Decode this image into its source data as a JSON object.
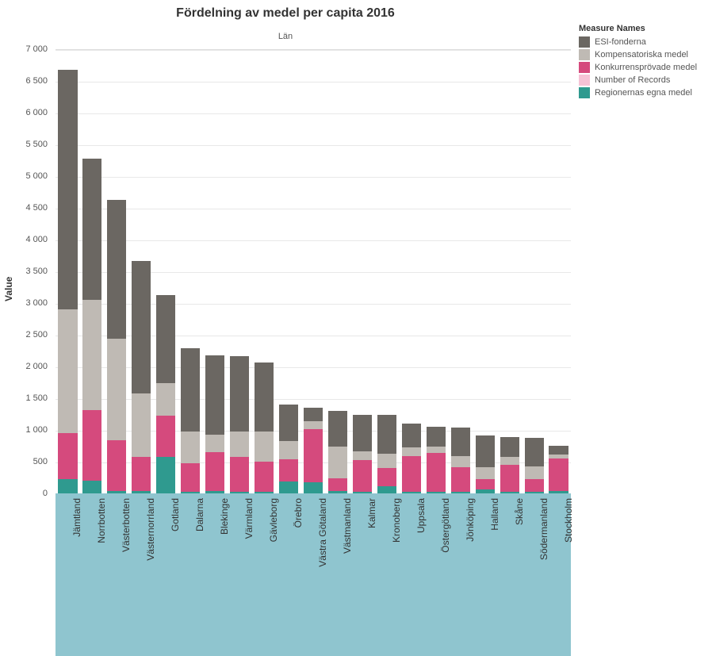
{
  "chart": {
    "type": "stacked-bar",
    "title": "Fördelning av medel per capita 2016",
    "title_fontsize": 16,
    "subtitle": "Län",
    "y_axis_label": "Value",
    "background_color": "#ffffff",
    "grid_color": "#e8e8e8",
    "x_band_color": "#8fc5cf",
    "ylim": [
      0,
      7000
    ],
    "ytick_step": 500,
    "ytick_labels": [
      "0",
      "500",
      "1 000",
      "1 500",
      "2 000",
      "2 500",
      "3 000",
      "3 500",
      "4 000",
      "4 500",
      "5 000",
      "5 500",
      "6 000",
      "6 500",
      "7 000"
    ],
    "bar_width_ratio": 0.78,
    "legend_title": "Measure Names",
    "measures": [
      {
        "key": "esi",
        "label": "ESI-fonderna",
        "color": "#6b6762"
      },
      {
        "key": "komp",
        "label": "Kompensatoriska medel",
        "color": "#bfbab4"
      },
      {
        "key": "konk",
        "label": "Konkurrensprövade medel",
        "color": "#d54a7d"
      },
      {
        "key": "nrec",
        "label": "Number of Records",
        "color": "#f6c3d6"
      },
      {
        "key": "regi",
        "label": "Regionernas egna medel",
        "color": "#2f9a8f"
      }
    ],
    "stack_order": [
      "regi",
      "nrec",
      "konk",
      "komp",
      "esi"
    ],
    "categories": [
      {
        "label": "Jämtland",
        "values": {
          "regi": 230,
          "nrec": 0,
          "konk": 720,
          "komp": 1950,
          "esi": 3770
        }
      },
      {
        "label": "Norrbotten",
        "values": {
          "regi": 200,
          "nrec": 0,
          "konk": 1110,
          "komp": 1740,
          "esi": 2220
        }
      },
      {
        "label": "Västerbotten",
        "values": {
          "regi": 40,
          "nrec": 0,
          "konk": 800,
          "komp": 1600,
          "esi": 2190
        }
      },
      {
        "label": "Västernorrland",
        "values": {
          "regi": 40,
          "nrec": 0,
          "konk": 540,
          "komp": 1000,
          "esi": 2080
        }
      },
      {
        "label": "Gotland",
        "values": {
          "regi": 570,
          "nrec": 0,
          "konk": 650,
          "komp": 520,
          "esi": 1380
        }
      },
      {
        "label": "Dalarna",
        "values": {
          "regi": 30,
          "nrec": 0,
          "konk": 450,
          "komp": 500,
          "esi": 1310
        }
      },
      {
        "label": "Blekinge",
        "values": {
          "regi": 40,
          "nrec": 0,
          "konk": 610,
          "komp": 280,
          "esi": 1240
        }
      },
      {
        "label": "Värmland",
        "values": {
          "regi": 30,
          "nrec": 0,
          "konk": 540,
          "komp": 410,
          "esi": 1180
        }
      },
      {
        "label": "Gävleborg",
        "values": {
          "regi": 30,
          "nrec": 0,
          "konk": 470,
          "komp": 480,
          "esi": 1080
        }
      },
      {
        "label": "Örebro",
        "values": {
          "regi": 190,
          "nrec": 0,
          "konk": 350,
          "komp": 280,
          "esi": 580
        }
      },
      {
        "label": "Västra Götaland",
        "values": {
          "regi": 180,
          "nrec": 0,
          "konk": 830,
          "komp": 130,
          "esi": 210
        }
      },
      {
        "label": "Västmanland",
        "values": {
          "regi": 40,
          "nrec": 0,
          "konk": 200,
          "komp": 500,
          "esi": 560
        }
      },
      {
        "label": "Kalmar",
        "values": {
          "regi": 30,
          "nrec": 0,
          "konk": 500,
          "komp": 130,
          "esi": 580
        }
      },
      {
        "label": "Kronoberg",
        "values": {
          "regi": 110,
          "nrec": 0,
          "konk": 290,
          "komp": 220,
          "esi": 620
        }
      },
      {
        "label": "Uppsala",
        "values": {
          "regi": 30,
          "nrec": 0,
          "konk": 560,
          "komp": 130,
          "esi": 380
        }
      },
      {
        "label": "Östergötland",
        "values": {
          "regi": 30,
          "nrec": 0,
          "konk": 610,
          "komp": 100,
          "esi": 310
        }
      },
      {
        "label": "Jönköping",
        "values": {
          "regi": 30,
          "nrec": 0,
          "konk": 380,
          "komp": 180,
          "esi": 450
        }
      },
      {
        "label": "Halland",
        "values": {
          "regi": 60,
          "nrec": 0,
          "konk": 170,
          "komp": 180,
          "esi": 500
        }
      },
      {
        "label": "Skåne",
        "values": {
          "regi": 30,
          "nrec": 0,
          "konk": 420,
          "komp": 130,
          "esi": 310
        }
      },
      {
        "label": "Södermanland",
        "values": {
          "regi": 30,
          "nrec": 0,
          "konk": 190,
          "komp": 210,
          "esi": 440
        }
      },
      {
        "label": "Stockholm",
        "values": {
          "regi": 40,
          "nrec": 0,
          "konk": 510,
          "komp": 60,
          "esi": 140
        }
      }
    ]
  }
}
